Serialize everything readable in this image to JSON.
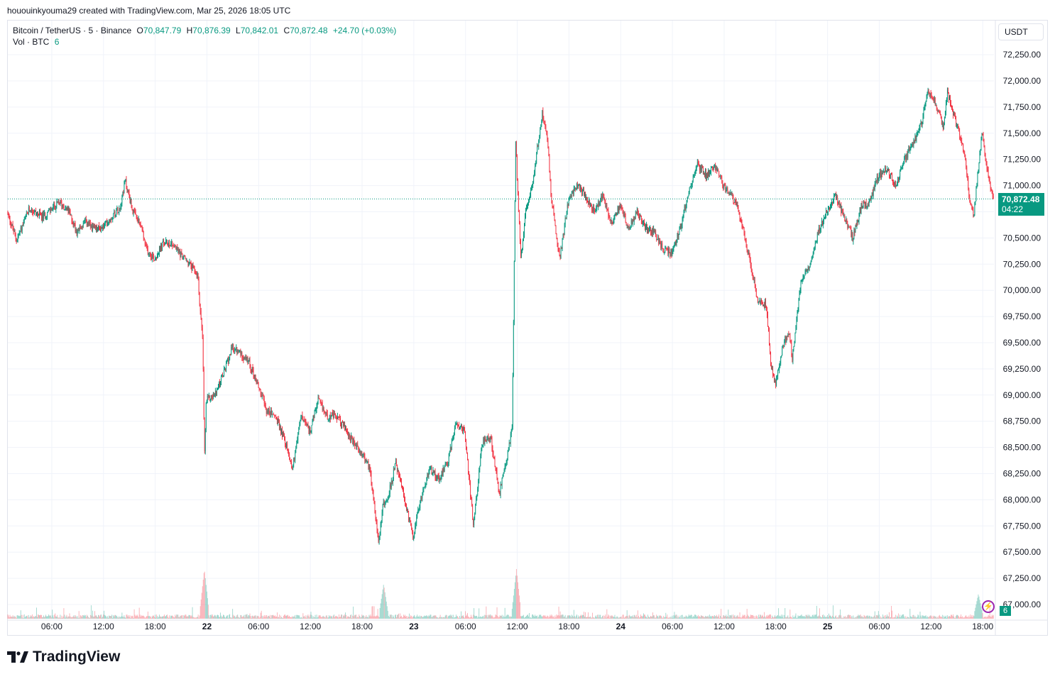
{
  "header": {
    "created_by": "hououinkyouma29 created with TradingView.com, Mar 25, 2026 18:05 UTC"
  },
  "legend": {
    "symbol": "Bitcoin / TetherUS · 5 · Binance",
    "o_label": "O",
    "o_value": "70,847.79",
    "h_label": "H",
    "h_value": "70,876.39",
    "l_label": "L",
    "l_value": "70,842.01",
    "c_label": "C",
    "c_value": "70,872.48",
    "change": "+24.70 (+0.03%)",
    "vol_label": "Vol · BTC",
    "vol_value": "6"
  },
  "currency_button": "USDT",
  "last_price": {
    "price": "70,872.48",
    "countdown": "04:22"
  },
  "volume_badge": "6",
  "brand": "TradingView",
  "colors": {
    "up": "#089981",
    "down": "#f23645",
    "grid": "#f0f3fa",
    "accent": "#9c27b0"
  },
  "icons": [
    "tradingview-logo-icon",
    "lightning-icon"
  ],
  "chart_data": {
    "type": "candlestick",
    "interval": "5m",
    "y_ticks": [
      72250,
      72000,
      71750,
      71500,
      71250,
      71000,
      70750,
      70500,
      70250,
      70000,
      69750,
      69500,
      69250,
      69000,
      68750,
      68500,
      68250,
      68000,
      67750,
      67500,
      67250,
      67000
    ],
    "y_tick_labels": [
      "72,250.00",
      "72,000.00",
      "71,750.00",
      "71,500.00",
      "71,250.00",
      "71,000.00",
      "70,750.00",
      "70,500.00",
      "70,250.00",
      "70,000.00",
      "69,750.00",
      "69,500.00",
      "69,250.00",
      "69,000.00",
      "68,750.00",
      "68,500.00",
      "68,250.00",
      "68,000.00",
      "67,750.00",
      "67,500.00",
      "67,250.00",
      "67,000.00"
    ],
    "x_ticks": [
      "06:00",
      "12:00",
      "18:00",
      "22",
      "06:00",
      "12:00",
      "18:00",
      "23",
      "06:00",
      "12:00",
      "18:00",
      "24",
      "06:00",
      "12:00",
      "18:00",
      "25",
      "06:00",
      "12:00",
      "18:00"
    ],
    "x_tick_hours": [
      6,
      12,
      18,
      24,
      30,
      36,
      42,
      48,
      54,
      60,
      66,
      72,
      78,
      84,
      90,
      96,
      102,
      108,
      114
    ],
    "x_range_hours": [
      0.9,
      115.3
    ],
    "last_price": 70872.48,
    "price_path": [
      [
        0.9,
        70750
      ],
      [
        2,
        70480
      ],
      [
        3.5,
        70780
      ],
      [
        5,
        70700
      ],
      [
        7,
        70840
      ],
      [
        8,
        70760
      ],
      [
        9,
        70560
      ],
      [
        10,
        70650
      ],
      [
        11,
        70580
      ],
      [
        12,
        70600
      ],
      [
        13,
        70700
      ],
      [
        14,
        70800
      ],
      [
        14.6,
        71050
      ],
      [
        15.5,
        70750
      ],
      [
        16.5,
        70600
      ],
      [
        17,
        70400
      ],
      [
        18,
        70300
      ],
      [
        19,
        70450
      ],
      [
        20,
        70450
      ],
      [
        21,
        70350
      ],
      [
        22,
        70250
      ],
      [
        23,
        70150
      ],
      [
        23.6,
        69500
      ],
      [
        23.8,
        68400
      ],
      [
        24,
        68950
      ],
      [
        25,
        69000
      ],
      [
        26,
        69200
      ],
      [
        27,
        69450
      ],
      [
        28,
        69400
      ],
      [
        29,
        69300
      ],
      [
        30,
        69100
      ],
      [
        31,
        68850
      ],
      [
        32,
        68800
      ],
      [
        33,
        68600
      ],
      [
        34,
        68300
      ],
      [
        35,
        68800
      ],
      [
        36,
        68650
      ],
      [
        37,
        68950
      ],
      [
        38,
        68800
      ],
      [
        39,
        68800
      ],
      [
        40,
        68700
      ],
      [
        41,
        68550
      ],
      [
        42,
        68450
      ],
      [
        43,
        68300
      ],
      [
        44,
        67600
      ],
      [
        44.5,
        67950
      ],
      [
        45,
        68000
      ],
      [
        46,
        68350
      ],
      [
        47,
        68000
      ],
      [
        48,
        67650
      ],
      [
        49,
        68050
      ],
      [
        50,
        68300
      ],
      [
        51,
        68200
      ],
      [
        52,
        68350
      ],
      [
        53,
        68750
      ],
      [
        54,
        68650
      ],
      [
        55,
        67750
      ],
      [
        56,
        68550
      ],
      [
        57,
        68600
      ],
      [
        58,
        68050
      ],
      [
        59,
        68450
      ],
      [
        59.5,
        68700
      ],
      [
        59.9,
        71400
      ],
      [
        60.5,
        70300
      ],
      [
        61,
        70700
      ],
      [
        62,
        71100
      ],
      [
        63,
        71700
      ],
      [
        63.6,
        71450
      ],
      [
        64,
        70900
      ],
      [
        65,
        70300
      ],
      [
        66,
        70850
      ],
      [
        67,
        71000
      ],
      [
        68,
        70900
      ],
      [
        69,
        70750
      ],
      [
        70,
        70900
      ],
      [
        71,
        70650
      ],
      [
        72,
        70800
      ],
      [
        73,
        70600
      ],
      [
        74,
        70750
      ],
      [
        75,
        70600
      ],
      [
        76,
        70550
      ],
      [
        77,
        70400
      ],
      [
        78,
        70350
      ],
      [
        79,
        70600
      ],
      [
        80,
        70950
      ],
      [
        81,
        71200
      ],
      [
        82,
        71100
      ],
      [
        83,
        71200
      ],
      [
        84,
        71000
      ],
      [
        85,
        70900
      ],
      [
        86,
        70700
      ],
      [
        87,
        70300
      ],
      [
        88,
        69900
      ],
      [
        89,
        69850
      ],
      [
        89.5,
        69300
      ],
      [
        90,
        69100
      ],
      [
        90.5,
        69300
      ],
      [
        91,
        69500
      ],
      [
        91.6,
        69600
      ],
      [
        92,
        69350
      ],
      [
        93,
        70100
      ],
      [
        94,
        70250
      ],
      [
        95,
        70550
      ],
      [
        96,
        70750
      ],
      [
        97,
        70900
      ],
      [
        98,
        70700
      ],
      [
        99,
        70500
      ],
      [
        100,
        70800
      ],
      [
        101,
        70850
      ],
      [
        102,
        71100
      ],
      [
        103,
        71150
      ],
      [
        104,
        71000
      ],
      [
        105,
        71250
      ],
      [
        106,
        71400
      ],
      [
        107,
        71600
      ],
      [
        107.7,
        71900
      ],
      [
        108.3,
        71850
      ],
      [
        109,
        71700
      ],
      [
        109.5,
        71550
      ],
      [
        110,
        71900
      ],
      [
        111,
        71600
      ],
      [
        112,
        71300
      ],
      [
        112.5,
        70900
      ],
      [
        113,
        70700
      ],
      [
        114,
        71500
      ],
      [
        114.7,
        71100
      ],
      [
        115.3,
        70872
      ]
    ],
    "volume_spikes_hours": [
      [
        23.7,
        5
      ],
      [
        44.5,
        3.5
      ],
      [
        59.9,
        5
      ],
      [
        113.5,
        2.5
      ]
    ]
  }
}
